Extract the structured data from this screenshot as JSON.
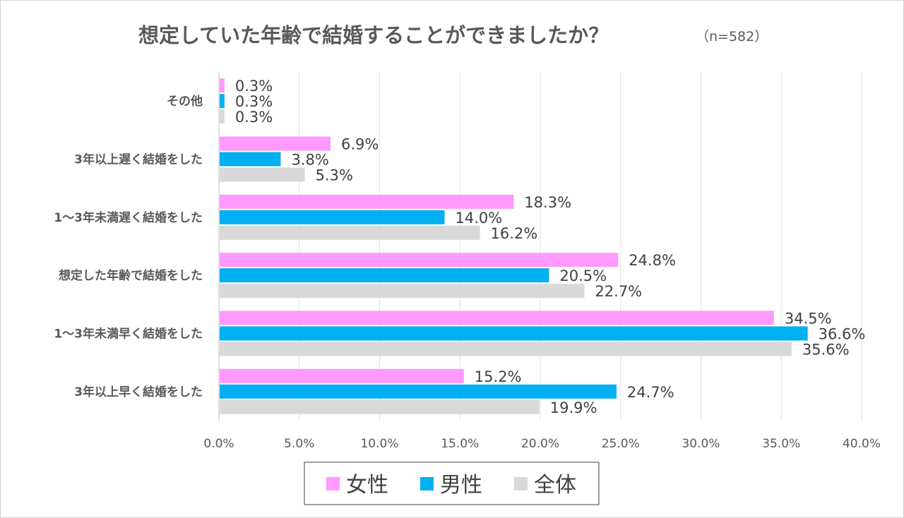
{
  "chart_data": {
    "type": "bar",
    "orientation": "horizontal",
    "title": "想定していた年齢で結婚することができましたか？",
    "subtitle": "（n=582）",
    "categories": [
      "その他",
      "3年以上遅く結婚をした",
      "1～3年未満遅く結婚をした",
      "想定した年齢で結婚をした",
      "1～3年未満早く結婚をした",
      "3年以上早く結婚をした"
    ],
    "series": [
      {
        "name": "女性",
        "color": "#FF99FF",
        "values": [
          0.3,
          6.9,
          18.3,
          24.8,
          34.5,
          15.2
        ]
      },
      {
        "name": "男性",
        "color": "#00B0F0",
        "values": [
          0.3,
          3.8,
          14.0,
          20.5,
          36.6,
          24.7
        ]
      },
      {
        "name": "全体",
        "color": "#D9D9D9",
        "values": [
          0.3,
          5.3,
          16.2,
          22.7,
          35.6,
          19.9
        ]
      }
    ],
    "xlim": [
      0,
      40
    ],
    "xticks": [
      0,
      5,
      10,
      15,
      20,
      25,
      30,
      35,
      40
    ],
    "xtick_labels": [
      "0.0%",
      "5.0%",
      "10.0%",
      "15.0%",
      "20.0%",
      "25.0%",
      "30.0%",
      "35.0%",
      "40.0%"
    ],
    "grid": "vertical",
    "legend": "bottom",
    "xlabel": "",
    "ylabel": ""
  }
}
